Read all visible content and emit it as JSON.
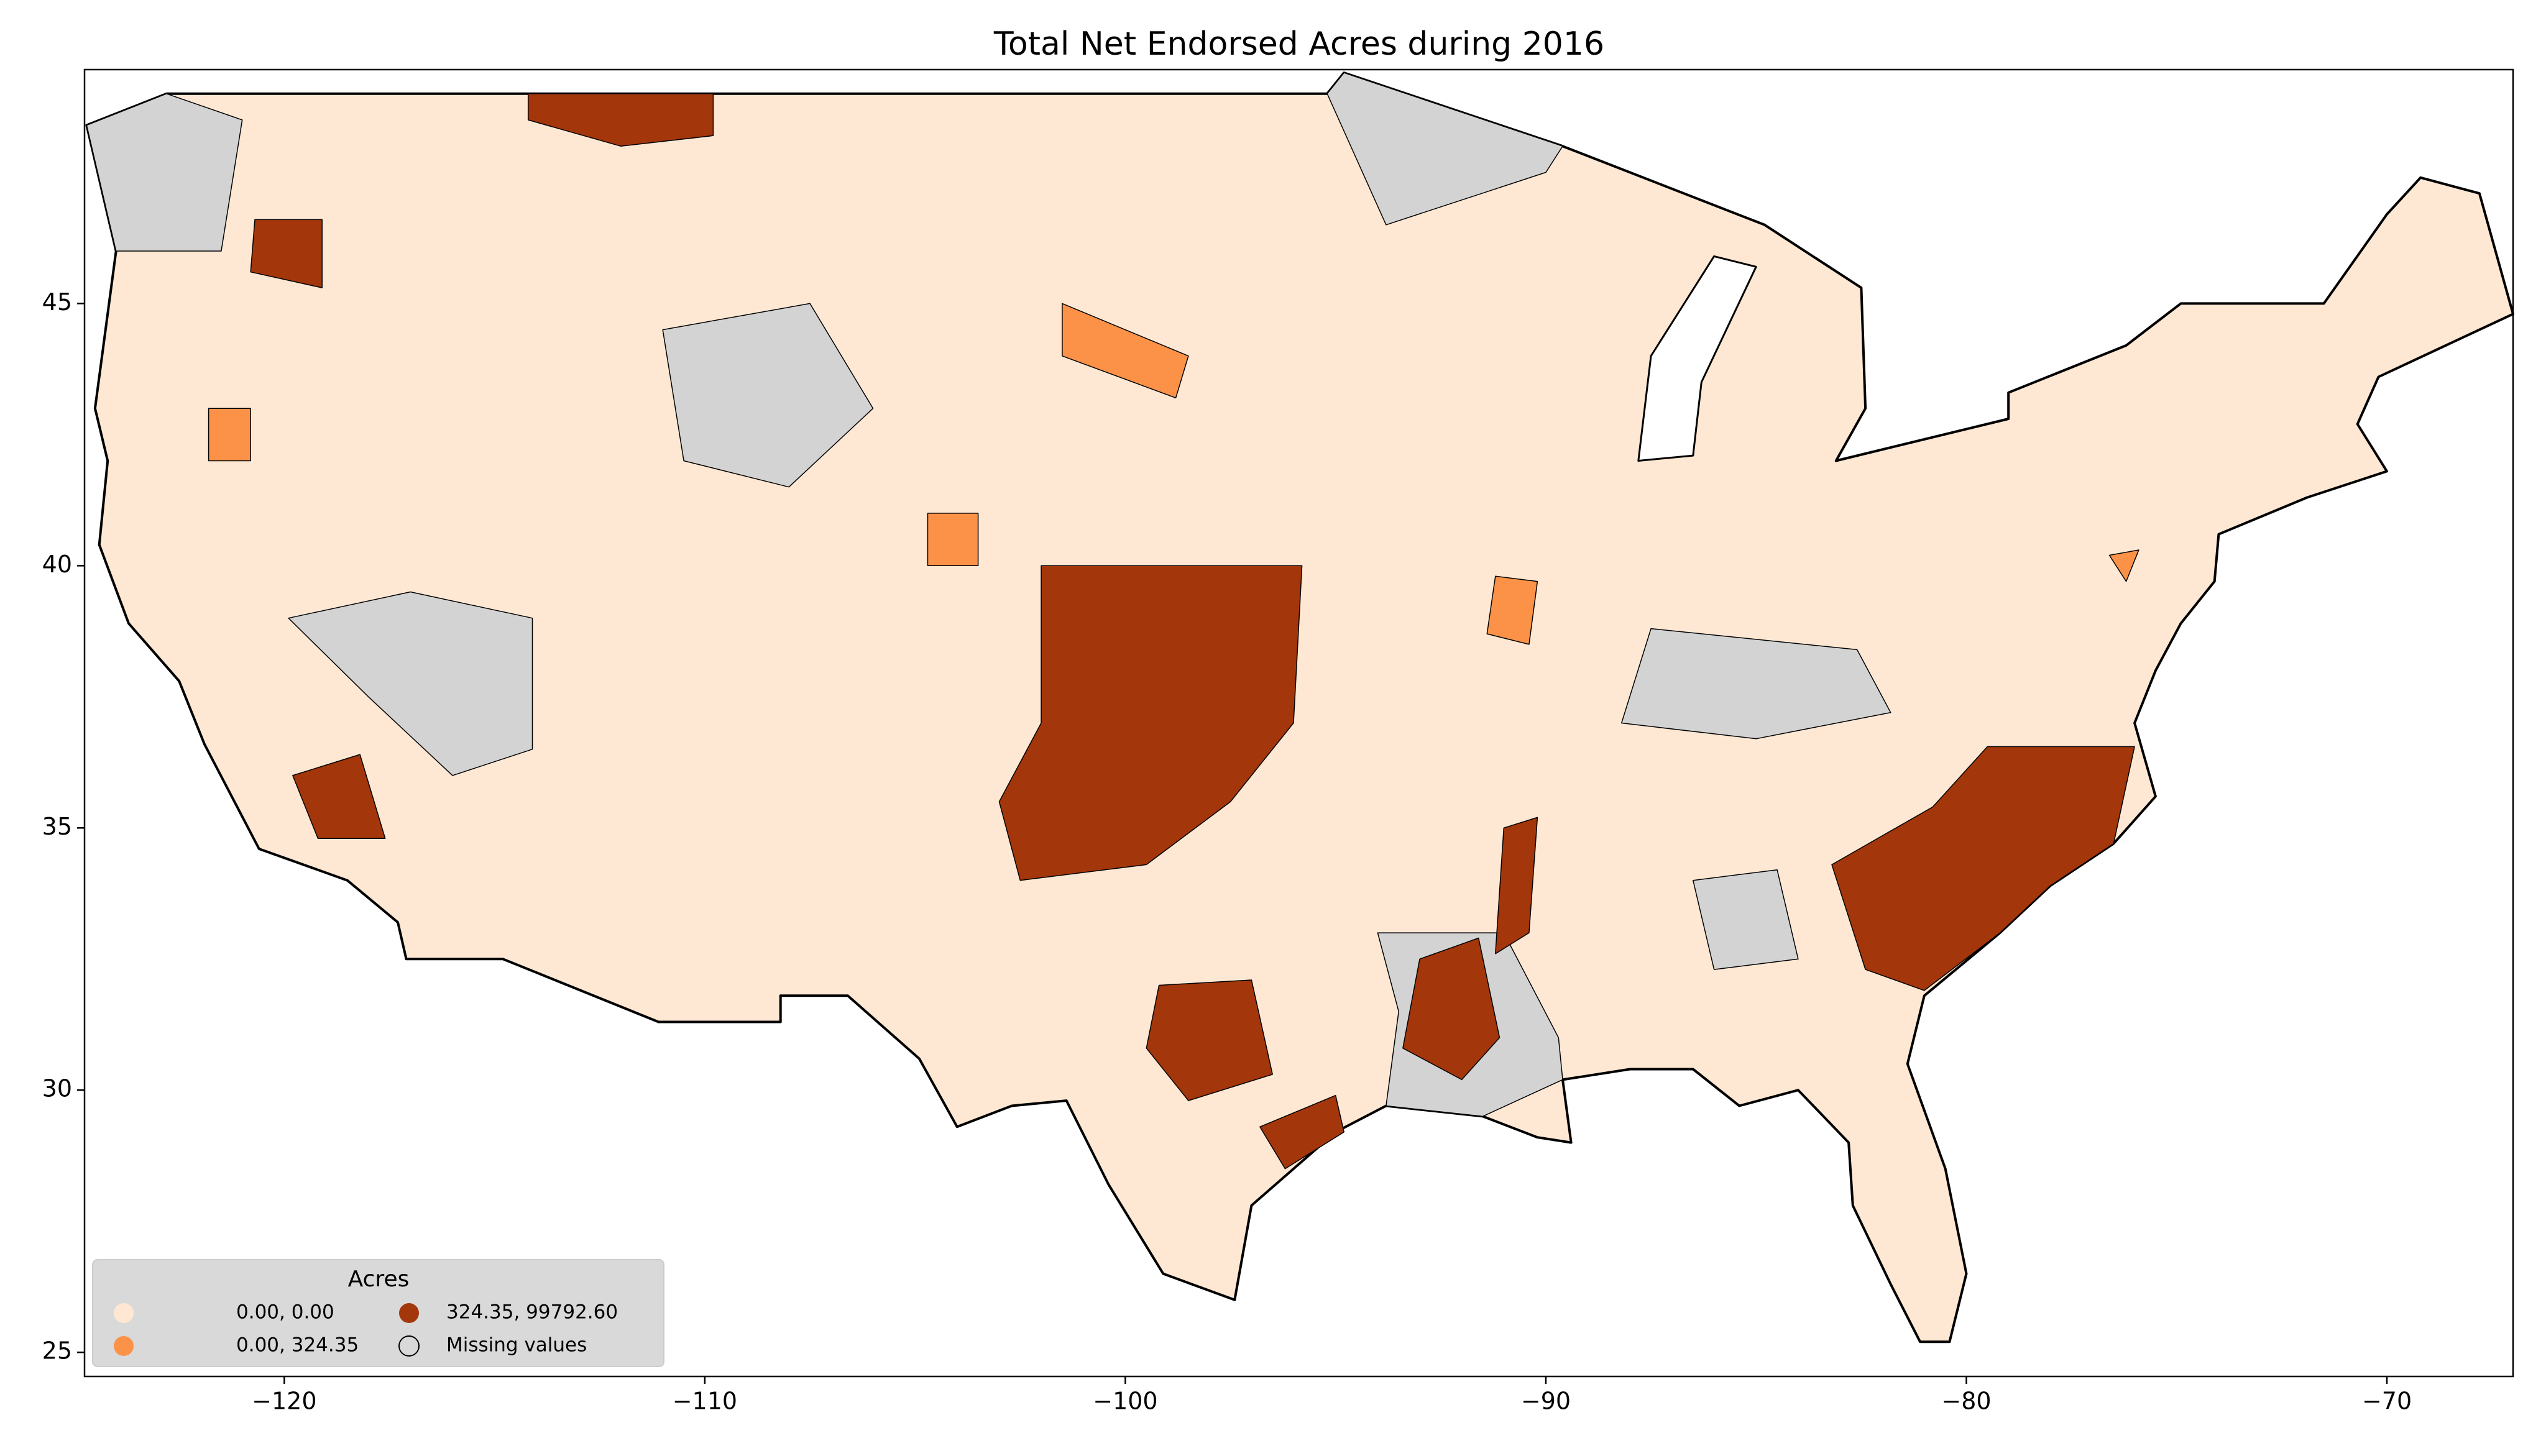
{
  "chart_data": {
    "type": "map",
    "title": "Total Net Endorsed Acres during 2016",
    "xlim": [
      -124.75,
      -67.0
    ],
    "ylim": [
      24.54,
      49.46
    ],
    "xticks": [
      {
        "value": -120,
        "label": "−120"
      },
      {
        "value": -110,
        "label": "−110"
      },
      {
        "value": -100,
        "label": "−100"
      },
      {
        "value": -90,
        "label": "−90"
      },
      {
        "value": -80,
        "label": "−80"
      },
      {
        "value": -70,
        "label": "−70"
      }
    ],
    "yticks": [
      25,
      30,
      35,
      40,
      45
    ],
    "legend": {
      "title": "Acres",
      "corner": "lower left",
      "entries": [
        {
          "label": "0.00,     0.00",
          "color": "#fee8d4"
        },
        {
          "label": "0.00,   324.35",
          "color": "#fb9248"
        },
        {
          "label": "324.35, 99792.60",
          "color": "#a3360a"
        },
        {
          "label": "Missing values",
          "color": "#d3d3d3"
        }
      ]
    }
  }
}
